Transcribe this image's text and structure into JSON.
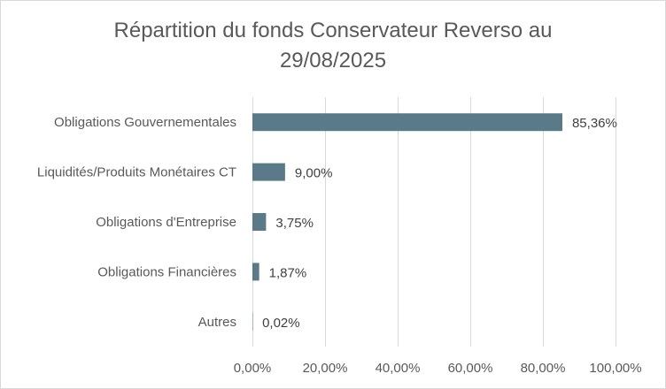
{
  "chart_data": {
    "type": "bar",
    "orientation": "horizontal",
    "title_line1": "Répartition du fonds Conservateur Reverso au",
    "title_line2": "29/08/2025",
    "categories": [
      "Obligations Gouvernementales",
      "Liquidités/Produits Monétaires CT",
      "Obligations d'Entreprise",
      "Obligations Financières",
      "Autres"
    ],
    "values": [
      85.36,
      9.0,
      3.75,
      1.87,
      0.02
    ],
    "value_labels": [
      "85,36%",
      "9,00%",
      "3,75%",
      "1,87%",
      "0,02%"
    ],
    "xlim": [
      0,
      100
    ],
    "x_ticks": [
      0,
      20,
      40,
      60,
      80,
      100
    ],
    "x_tick_labels": [
      "0,00%",
      "20,00%",
      "40,00%",
      "60,00%",
      "80,00%",
      "100,00%"
    ],
    "grid": "vertical",
    "legend": "none",
    "colors": {
      "bar": "#5b7a89",
      "grid": "#d9d9d9",
      "text": "#595959"
    }
  }
}
